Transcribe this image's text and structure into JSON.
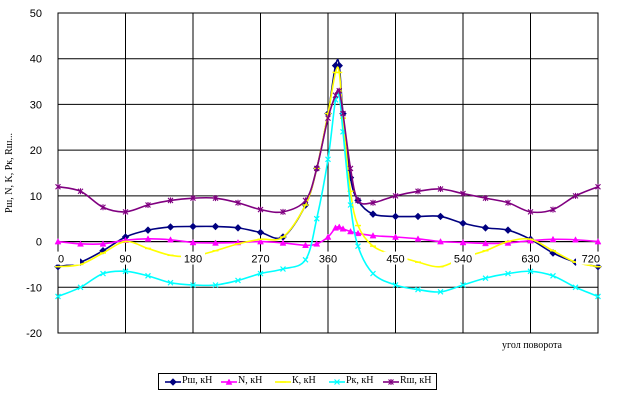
{
  "chart_data": {
    "type": "line",
    "title": "",
    "xlabel": "угол поворота",
    "ylabel": "Рш, N, K, Рк, Rш...",
    "xlim": [
      0,
      720
    ],
    "ylim": [
      -20,
      50
    ],
    "x_ticks": [
      "0",
      "90",
      "180",
      "270",
      "360",
      "450",
      "540",
      "630",
      "720"
    ],
    "y_ticks": [
      "-20",
      "-10",
      "0",
      "10",
      "20",
      "30",
      "40",
      "50"
    ],
    "grid": true,
    "legend_position": "bottom",
    "series": [
      {
        "name": "Рш, кН",
        "color": "#000080",
        "marker": "diamond",
        "x": [
          0,
          30,
          60,
          90,
          120,
          150,
          180,
          210,
          240,
          270,
          300,
          330,
          345,
          360,
          370,
          375,
          380,
          390,
          400,
          420,
          450,
          480,
          510,
          540,
          570,
          600,
          630,
          660,
          690,
          720
        ],
        "y": [
          -5.5,
          -4.5,
          -2,
          1,
          2.5,
          3.2,
          3.3,
          3.3,
          3,
          2,
          1,
          8,
          16,
          28,
          38.5,
          38.5,
          28,
          14,
          9,
          6,
          5.5,
          5.5,
          5.5,
          4,
          3,
          2.5,
          0.5,
          -2.5,
          -4.5,
          -5.5
        ]
      },
      {
        "name": "N, кН",
        "color": "#ff00ff",
        "marker": "triangle",
        "x": [
          0,
          30,
          60,
          90,
          120,
          150,
          180,
          210,
          240,
          270,
          300,
          330,
          345,
          360,
          370,
          375,
          380,
          390,
          400,
          420,
          450,
          480,
          510,
          540,
          570,
          600,
          630,
          660,
          690,
          720
        ],
        "y": [
          0,
          -0.5,
          -0.5,
          0.3,
          0.6,
          0.4,
          -0.2,
          -0.3,
          -0.2,
          0,
          -0.3,
          -0.8,
          -0.5,
          1,
          3,
          3.2,
          2.8,
          2.2,
          1.8,
          1.3,
          1,
          0.6,
          0,
          -0.2,
          -0.4,
          -0.3,
          0.2,
          0.5,
          0.4,
          0
        ]
      },
      {
        "name": "К, кН",
        "color": "#ffff00",
        "marker": "bar",
        "x": [
          0,
          30,
          60,
          90,
          120,
          150,
          180,
          210,
          240,
          270,
          300,
          330,
          345,
          360,
          370,
          375,
          380,
          390,
          400,
          420,
          450,
          480,
          510,
          540,
          570,
          600,
          630,
          660,
          690,
          720
        ],
        "y": [
          -5.5,
          -5,
          -2.5,
          0,
          -1.5,
          -3,
          -3.2,
          -2,
          -0.5,
          0.5,
          1,
          8,
          16,
          28,
          37,
          37,
          27,
          11,
          3.5,
          -1,
          -3,
          -4.5,
          -5.5,
          -3.5,
          -2,
          0,
          0.5,
          -2,
          -4.5,
          -5.5
        ]
      },
      {
        "name": "Рк, кН",
        "color": "#00ffff",
        "marker": "x",
        "x": [
          0,
          30,
          60,
          90,
          120,
          150,
          180,
          210,
          240,
          270,
          300,
          330,
          345,
          360,
          370,
          375,
          380,
          390,
          400,
          420,
          450,
          480,
          510,
          540,
          570,
          600,
          630,
          660,
          690,
          720
        ],
        "y": [
          -12,
          -10,
          -7,
          -6.5,
          -7.5,
          -9,
          -9.5,
          -9.5,
          -8.5,
          -7,
          -6,
          -4,
          5,
          18,
          31,
          32,
          24,
          8,
          -1,
          -7,
          -9.5,
          -10.5,
          -11,
          -9.5,
          -8,
          -7,
          -6.5,
          -7.5,
          -10,
          -12
        ]
      },
      {
        "name": "Rш, кН",
        "color": "#800080",
        "marker": "asterisk",
        "x": [
          0,
          30,
          60,
          90,
          120,
          150,
          180,
          210,
          240,
          270,
          300,
          330,
          345,
          360,
          370,
          375,
          380,
          390,
          400,
          420,
          450,
          480,
          510,
          540,
          570,
          600,
          630,
          660,
          690,
          720
        ],
        "y": [
          12,
          11,
          7.5,
          6.5,
          8,
          9,
          9.5,
          9.5,
          8.5,
          7,
          6.5,
          9,
          16,
          27,
          32,
          33,
          28,
          16,
          9,
          8.5,
          10,
          11,
          11.5,
          10.5,
          9.5,
          8.5,
          6.5,
          7,
          10,
          12
        ]
      }
    ]
  }
}
